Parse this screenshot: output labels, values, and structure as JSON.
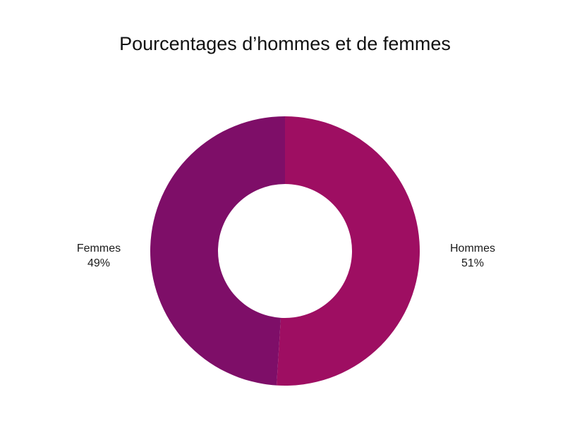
{
  "chart_data": {
    "type": "pie",
    "variant": "donut",
    "title": "Pourcentages d’hommes et de femmes",
    "slices": [
      {
        "label": "Hommes",
        "value": 51,
        "value_label": "51%",
        "color": "#9e0e62"
      },
      {
        "label": "Femmes",
        "value": 49,
        "value_label": "49%",
        "color": "#7e0e68"
      }
    ],
    "start_angle": "12 o'clock",
    "direction": "clockwise",
    "legend": "none (labels beside slices)"
  }
}
